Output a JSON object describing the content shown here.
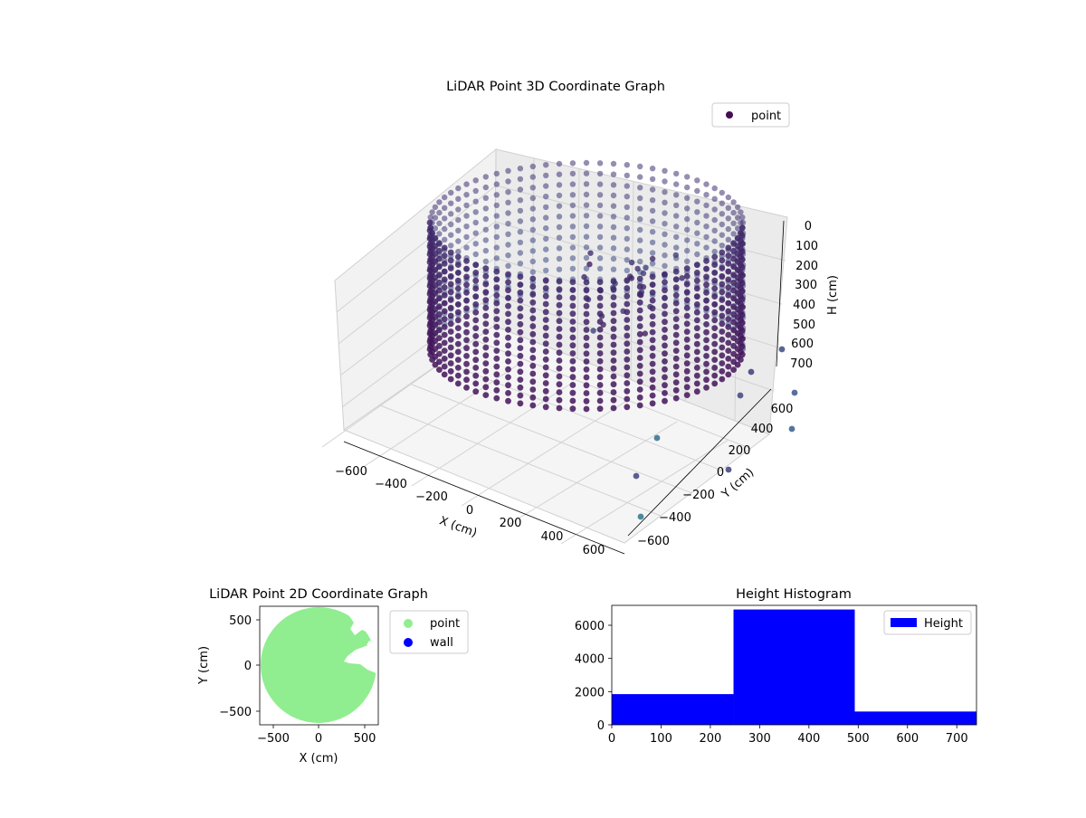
{
  "chart_data": [
    {
      "type": "scatter",
      "dimensions": 3,
      "title": "LiDAR Point 3D Coordinate Graph",
      "xlabel": "X (cm)",
      "ylabel": "Y (cm)",
      "zlabel": "H (cm)",
      "xlim": [
        -650,
        650
      ],
      "ylim": [
        -650,
        650
      ],
      "zlim": [
        740,
        0
      ],
      "z_inverted": true,
      "xticks": [
        "−600",
        "−400",
        "−200",
        "0",
        "200",
        "400",
        "600"
      ],
      "yticks": [
        "−600",
        "−400",
        "−200",
        "0",
        "200",
        "400",
        "600"
      ],
      "zticks": [
        "0",
        "100",
        "200",
        "300",
        "400",
        "500",
        "600",
        "700"
      ],
      "colormap": "viridis (dark purple to teal)",
      "grid": true,
      "legend": {
        "position": "top-right",
        "entries": [
          {
            "label": "point",
            "color": "#440d54"
          }
        ]
      },
      "series": [
        {
          "name": "point",
          "shape": "cylindrical wall of points, radius about 650 cm, height 0 to 740 cm, with an inner cluster near the far wall",
          "sample_points": [
            {
              "x": 620,
              "y": 640,
              "h": 520
            },
            {
              "x": 640,
              "y": 480,
              "h": 670
            },
            {
              "x": 560,
              "y": 600,
              "h": 690
            },
            {
              "x": 300,
              "y": -450,
              "h": 730
            },
            {
              "x": 420,
              "y": -640,
              "h": 740
            },
            {
              "x": 250,
              "y": 300,
              "h": 120
            },
            {
              "x": 150,
              "y": 200,
              "h": 200
            },
            {
              "x": 50,
              "y": 100,
              "h": 300
            }
          ]
        }
      ]
    },
    {
      "type": "scatter",
      "title": "LiDAR Point 2D Coordinate Graph",
      "xlabel": "X (cm)",
      "ylabel": "Y (cm)",
      "xlim": [
        -650,
        650
      ],
      "ylim": [
        -650,
        650
      ],
      "xticks": [
        "−500",
        "0",
        "500"
      ],
      "yticks": [
        "500",
        "0",
        "−500"
      ],
      "legend": {
        "position": "outside-right",
        "entries": [
          {
            "label": "point",
            "color": "#90ee90"
          },
          {
            "label": "wall",
            "color": "#0000ff"
          }
        ]
      },
      "series": [
        {
          "name": "point",
          "color": "#90ee90",
          "shape": "filled disk of radius about 650 cm with notches on the right side"
        },
        {
          "name": "wall",
          "color": "#0000ff",
          "points": []
        }
      ]
    },
    {
      "type": "bar",
      "subtype": "histogram",
      "title": "Height Histogram",
      "xlim": [
        0,
        740
      ],
      "ylim": [
        0,
        7200
      ],
      "xticks": [
        "0",
        "100",
        "200",
        "300",
        "400",
        "500",
        "600",
        "700"
      ],
      "yticks": [
        "0",
        "2000",
        "4000",
        "6000"
      ],
      "color": "#0000ff",
      "legend": {
        "position": "top-right",
        "entries": [
          {
            "label": "Height",
            "color": "#0000ff"
          }
        ]
      },
      "series": [
        {
          "name": "Height",
          "bins": [
            {
              "from": 0,
              "to": 247,
              "count": 1850
            },
            {
              "from": 247,
              "to": 493,
              "count": 6950
            },
            {
              "from": 493,
              "to": 740,
              "count": 800
            }
          ]
        }
      ]
    }
  ]
}
